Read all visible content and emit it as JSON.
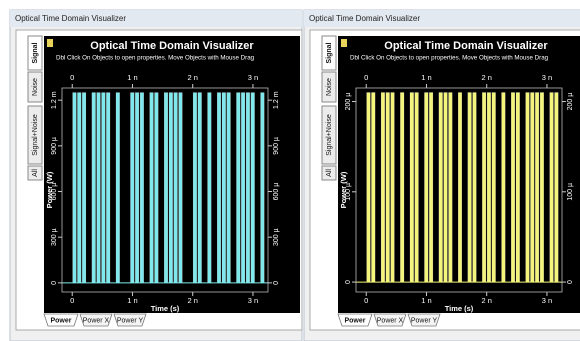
{
  "windows": [
    {
      "title": "Optical Time Domain Visualizer",
      "side_tabs": [
        "Signal",
        "Noise",
        "Signal+Noise",
        "All"
      ],
      "bottom_tabs": [
        "Power",
        "Power X",
        "Power Y"
      ],
      "chart_data": {
        "type": "bar",
        "title": "Optical Time Domain Visualizer",
        "subtitle": "Dbl Click On Objects to open properties.  Move Objects with Mouse Drag",
        "x_label": "Time (s)",
        "y_label": "Power (W)",
        "color": "#7fe8ec",
        "xlim": [
          -1.7e-10,
          3.25e-09
        ],
        "ylim": [
          -6e-05,
          0.00128
        ],
        "xticks": [
          0,
          {
            "value": 1e-09,
            "label": "1 n"
          },
          {
            "value": 2e-09,
            "label": "2 n"
          },
          {
            "value": 3e-09,
            "label": "3 n"
          }
        ],
        "yticks": [
          0,
          {
            "value": 0.0003,
            "label": "300 µ"
          },
          {
            "value": 0.0006,
            "label": "600 µ"
          },
          {
            "value": 0.0009,
            "label": "900 µ"
          },
          {
            "value": 0.0012,
            "label": "1.2 m"
          }
        ],
        "x": [
          0,
          8e-11,
          1.6e-10,
          2.4e-10,
          3.2e-10,
          4e-10,
          4.8e-10,
          5.6e-10,
          6.4e-10,
          7.2e-10,
          8e-10,
          8.8e-10,
          9.6e-10,
          1.04e-09,
          1.12e-09,
          1.2e-09,
          1.28e-09,
          1.36e-09,
          1.44e-09,
          1.52e-09,
          1.6e-09,
          1.68e-09,
          1.76e-09,
          1.84e-09,
          1.92e-09,
          2e-09,
          2.08e-09,
          2.16e-09,
          2.24e-09,
          2.32e-09,
          2.4e-09,
          2.48e-09,
          2.56e-09,
          2.64e-09,
          2.72e-09,
          2.8e-09,
          2.88e-09,
          2.96e-09,
          3.04e-09,
          3.12e-09
        ],
        "values": [
          0.00125,
          0.00125,
          0.00125,
          0,
          0.00125,
          0.00125,
          0.00125,
          0.00125,
          0,
          0.00125,
          0,
          0,
          0.00125,
          0.00125,
          0.00125,
          0,
          0.00125,
          0.00125,
          0,
          0.00125,
          0.00125,
          0.00125,
          0.00125,
          0,
          0,
          0.00125,
          0.00125,
          0,
          0.00125,
          0,
          0.00125,
          0.00125,
          0.00125,
          0,
          0.00125,
          0.00125,
          0.00125,
          0.00125,
          0,
          0.00125
        ]
      }
    },
    {
      "title": "Optical Time Domain Visualizer",
      "side_tabs": [
        "Signal",
        "Noise",
        "Signal+Noise",
        "All"
      ],
      "bottom_tabs": [
        "Power",
        "Power X",
        "Power Y"
      ],
      "chart_data": {
        "type": "bar",
        "title": "Optical Time Domain Visualizer",
        "subtitle": "Dbl Click On Objects to open properties.  Move Objects with Mouse Drag",
        "x_label": "Time (s)",
        "y_label": "Power (W)",
        "color": "#f4f47a",
        "xlim": [
          -1.7e-10,
          3.25e-09
        ],
        "ylim": [
          -1.1e-05,
          0.000215
        ],
        "xticks": [
          0,
          {
            "value": 1e-09,
            "label": "1 n"
          },
          {
            "value": 2e-09,
            "label": "2 n"
          },
          {
            "value": 3e-09,
            "label": "3 n"
          }
        ],
        "yticks": [
          0,
          {
            "value": 0.0001,
            "label": "100 µ"
          },
          {
            "value": 0.0002,
            "label": "200 µ"
          }
        ],
        "x": [
          0,
          8e-11,
          1.6e-10,
          2.4e-10,
          3.2e-10,
          4e-10,
          4.8e-10,
          5.6e-10,
          6.4e-10,
          7.2e-10,
          8e-10,
          8.8e-10,
          9.6e-10,
          1.04e-09,
          1.12e-09,
          1.2e-09,
          1.28e-09,
          1.36e-09,
          1.44e-09,
          1.52e-09,
          1.6e-09,
          1.68e-09,
          1.76e-09,
          1.84e-09,
          1.92e-09,
          2e-09,
          2.08e-09,
          2.16e-09,
          2.24e-09,
          2.32e-09,
          2.4e-09,
          2.48e-09,
          2.56e-09,
          2.64e-09,
          2.72e-09,
          2.8e-09,
          2.88e-09,
          2.96e-09,
          3.04e-09,
          3.12e-09
        ],
        "values": [
          0.00021,
          0.00021,
          0,
          0.00021,
          0.00021,
          0.00021,
          0,
          0.00021,
          0,
          0.00021,
          0.00021,
          0,
          0.00021,
          0.00021,
          0,
          0.00021,
          0.00021,
          0.00021,
          0,
          0.00021,
          0,
          0.00021,
          0.00021,
          0,
          0.00021,
          0.00021,
          0.00021,
          0,
          0.00021,
          0,
          0.00021,
          0.00021,
          0,
          0.00021,
          0.00021,
          0.00021,
          0.00021,
          0,
          0.00021,
          0.00021
        ]
      }
    }
  ]
}
